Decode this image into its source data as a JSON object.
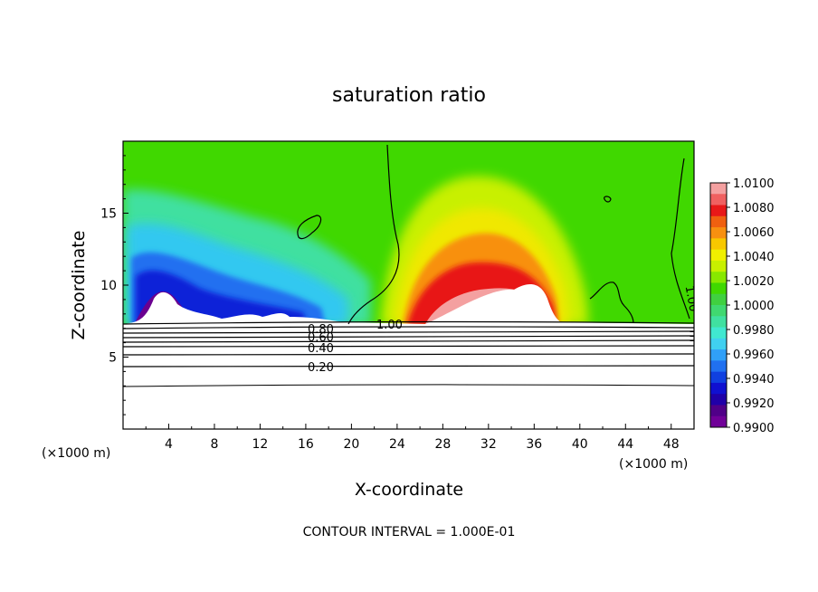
{
  "chart_data": {
    "type": "heatmap",
    "title": "saturation ratio",
    "xlabel": "X-coordinate",
    "ylabel": "Z-coordinate",
    "x_unit": "(×1000 m)",
    "x_unit_right": "(×1000 m)",
    "xlim": [
      0,
      50
    ],
    "ylim": [
      0,
      20
    ],
    "x_ticks": [
      "4",
      "8",
      "12",
      "16",
      "20",
      "24",
      "28",
      "32",
      "36",
      "40",
      "44",
      "48"
    ],
    "y_ticks": [
      "5",
      "10",
      "15"
    ],
    "colorbar": {
      "levels": [
        "1.0100",
        "1.0080",
        "1.0060",
        "1.0040",
        "1.0020",
        "1.0000",
        "0.9980",
        "0.9960",
        "0.9940",
        "0.9920",
        "0.9900"
      ],
      "colors": [
        "#f4a0a0",
        "#f06060",
        "#e81818",
        "#f06010",
        "#f89010",
        "#f8c800",
        "#f0f000",
        "#c8f000",
        "#88e800",
        "#40d800",
        "#40d040",
        "#40d870",
        "#40e0a0",
        "#40e8d0",
        "#40d0f0",
        "#30a0f8",
        "#2070f0",
        "#1040e0",
        "#1010d0",
        "#2000a8",
        "#500088",
        "#700098"
      ]
    },
    "contour_labels": [
      "0.80",
      "0.60",
      "0.40",
      "0.20",
      "1.00",
      "1.00"
    ],
    "contour_interval": "CONTOUR INTERVAL = 1.000E-01",
    "features": {
      "blue_region_x": [
        0,
        19
      ],
      "warm_region_x": [
        24,
        39
      ],
      "terrain_top_z": 7.3
    }
  }
}
